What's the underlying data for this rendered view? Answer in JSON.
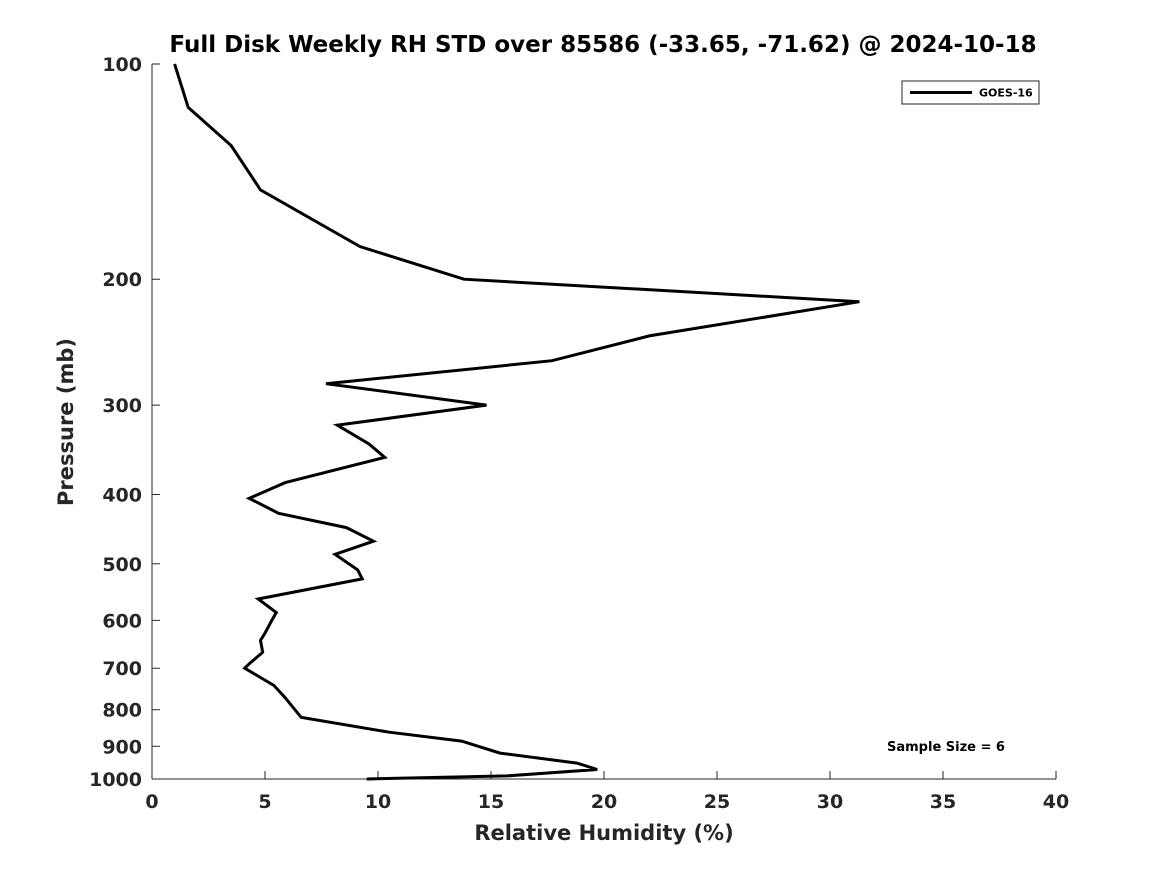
{
  "chart_data": {
    "type": "line",
    "title": "Full Disk Weekly RH STD over 85586 (-33.65, -71.62) @ 2024-10-18",
    "xlabel": "Relative Humidity (%)",
    "ylabel": "Pressure (mb)",
    "xlim": [
      0,
      40
    ],
    "ylim": [
      100,
      1000
    ],
    "y_scale": "log",
    "y_reversed": true,
    "x_ticks": [
      0,
      5,
      10,
      15,
      20,
      25,
      30,
      35,
      40
    ],
    "y_ticks": [
      100,
      200,
      300,
      400,
      500,
      600,
      700,
      800,
      900,
      1000
    ],
    "grid": false,
    "legend_position": "top-right",
    "annotation": "Sample Size = 6",
    "series": [
      {
        "name": "GOES-16",
        "color": "#000000",
        "x": [
          1.0,
          1.6,
          3.5,
          4.8,
          9.2,
          13.8,
          31.3,
          22.0,
          17.7,
          7.7,
          14.8,
          8.2,
          9.6,
          10.3,
          5.9,
          4.3,
          5.6,
          8.6,
          9.8,
          8.1,
          9.1,
          9.3,
          4.7,
          5.5,
          5.3,
          5.0,
          4.8,
          4.9,
          4.3,
          4.1,
          5.4,
          5.9,
          6.6,
          10.5,
          13.7,
          15.4,
          18.8,
          19.7,
          15.7,
          9.5
        ],
        "y": [
          100,
          115,
          130,
          150,
          180,
          200,
          215,
          240,
          260,
          280,
          300,
          320,
          340,
          355,
          385,
          405,
          425,
          445,
          465,
          485,
          510,
          525,
          560,
          585,
          600,
          625,
          640,
          665,
          690,
          700,
          740,
          770,
          820,
          860,
          885,
          920,
          950,
          970,
          990,
          1000
        ]
      }
    ]
  }
}
